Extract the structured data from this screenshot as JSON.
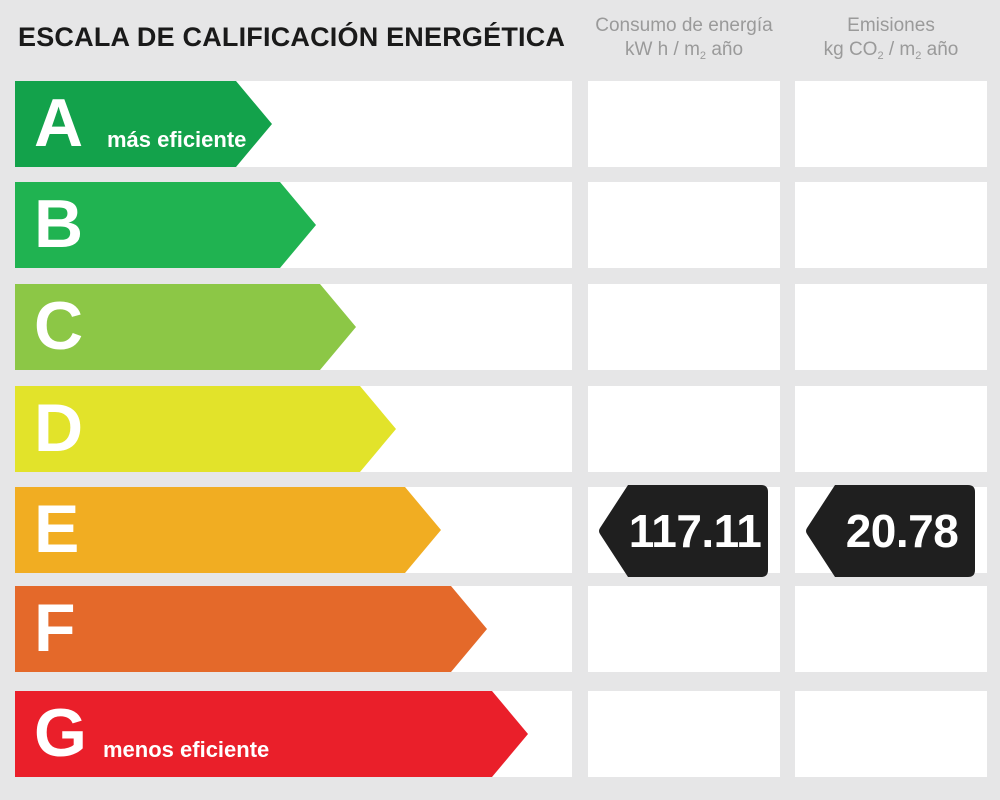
{
  "title": "ESCALA DE CALIFICACIÓN ENERGÉTICA",
  "columns": {
    "consumption": {
      "line1": "Consumo de energía",
      "line2a": "kW h / m",
      "line2sub": "2",
      "line2b": " año"
    },
    "emissions": {
      "line1": "Emisiones",
      "line2a": "kg CO",
      "line2sub1": "2",
      "line2mid": " / m",
      "line2sub2": "2",
      "line2b": " año"
    }
  },
  "grades": [
    {
      "letter": "A",
      "sublabel": "más eficiente",
      "color": "#13a24b"
    },
    {
      "letter": "B",
      "sublabel": "",
      "color": "#20b351"
    },
    {
      "letter": "C",
      "sublabel": "",
      "color": "#8cc746"
    },
    {
      "letter": "D",
      "sublabel": "",
      "color": "#e2e32a"
    },
    {
      "letter": "E",
      "sublabel": "",
      "color": "#f1ad22"
    },
    {
      "letter": "F",
      "sublabel": "",
      "color": "#e4692a"
    },
    {
      "letter": "G",
      "sublabel": "menos eficiente",
      "color": "#ea1f2a"
    }
  ],
  "rating": {
    "grade": "E",
    "consumption_value": "117.11",
    "emissions_value": "20.78",
    "badge_color": "#1f1f1f"
  }
}
